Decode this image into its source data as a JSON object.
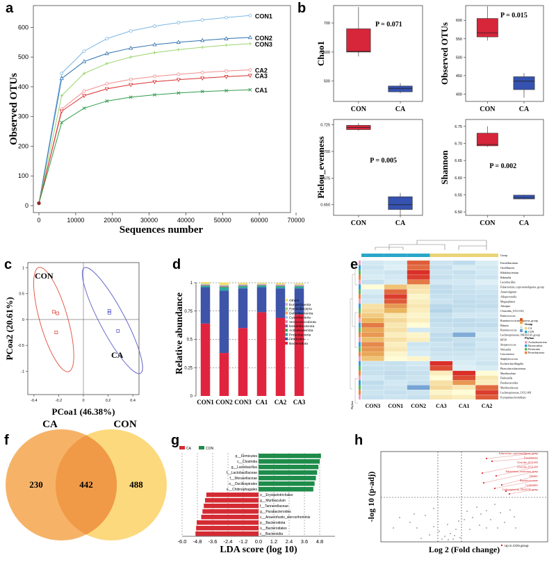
{
  "panels": {
    "a": "a",
    "b": "b",
    "c": "c",
    "d": "d",
    "e": "e",
    "f": "f",
    "g": "g",
    "h": "h"
  },
  "chart_data": [
    {
      "id": "a",
      "type": "line",
      "xlabel": "Sequences number",
      "ylabel": "Observed OTUs",
      "xlim": [
        0,
        70000
      ],
      "ylim": [
        0,
        650
      ],
      "xticks": [
        "0",
        "10000",
        "20000",
        "30000",
        "40000",
        "50000",
        "60000",
        "70000"
      ],
      "yticks": [
        "0",
        "100",
        "200",
        "300",
        "400",
        "500",
        "600"
      ],
      "x": [
        0,
        6200,
        12300,
        18500,
        25000,
        31500,
        38000,
        44500,
        51000,
        57500
      ],
      "series": [
        {
          "name": "CON1",
          "color": "#7bb6e4",
          "marker": "o",
          "values": [
            8,
            445,
            520,
            562,
            588,
            604,
            616,
            625,
            633,
            640
          ]
        },
        {
          "name": "CON2",
          "color": "#2a6fae",
          "marker": "^",
          "values": [
            8,
            428,
            485,
            512,
            530,
            542,
            550,
            556,
            562,
            566
          ]
        },
        {
          "name": "CON3",
          "color": "#9bd46c",
          "marker": "+",
          "values": [
            8,
            370,
            445,
            478,
            500,
            515,
            525,
            533,
            540,
            545
          ]
        },
        {
          "name": "CA2",
          "color": "#f28a8a",
          "marker": "o",
          "values": [
            8,
            325,
            385,
            410,
            425,
            435,
            442,
            448,
            453,
            457
          ]
        },
        {
          "name": "CA3",
          "color": "#d93030",
          "marker": "v",
          "values": [
            8,
            318,
            370,
            393,
            407,
            417,
            424,
            429,
            434,
            438
          ]
        },
        {
          "name": "CA1",
          "color": "#2f9a4a",
          "marker": "x",
          "values": [
            8,
            280,
            328,
            352,
            365,
            373,
            379,
            384,
            387,
            390
          ]
        }
      ]
    },
    {
      "id": "b",
      "type": "box",
      "subplots": [
        {
          "ylabel": "Chao1",
          "p": "P = 0.071",
          "yticks": [
            "500",
            "600",
            "700"
          ],
          "ylim": [
            430,
            760
          ],
          "groups": [
            {
              "name": "CON",
              "color": "#d7253a",
              "whisker": [
                585,
                755
              ],
              "box": [
                600,
                680
              ],
              "median": 602
            },
            {
              "name": "CA",
              "color": "#3552b0",
              "whisker": [
                458,
                493
              ],
              "box": [
                463,
                483
              ],
              "median": 475
            }
          ]
        },
        {
          "ylabel": "Observed OTUs",
          "p": "P = 0.015",
          "yticks": [
            "400",
            "450",
            "500",
            "550",
            "600"
          ],
          "ylim": [
            380,
            640
          ],
          "groups": [
            {
              "name": "CON",
              "color": "#d7253a",
              "whisker": [
                545,
                638
              ],
              "box": [
                555,
                605
              ],
              "median": 566
            },
            {
              "name": "CA",
              "color": "#3552b0",
              "whisker": [
                390,
                457
              ],
              "box": [
                412,
                447
              ],
              "median": 435
            }
          ]
        },
        {
          "ylabel": "Pielou_evenness",
          "p": "P = 0.005",
          "yticks": [
            "0.650",
            "0.675",
            "0.700",
            "0.725"
          ],
          "ylim": [
            0.64,
            0.73
          ],
          "groups": [
            {
              "name": "CON",
              "color": "#d7253a",
              "whisker": [
                0.7195,
                0.7265
              ],
              "box": [
                0.7205,
                0.7245
              ],
              "median": 0.7225
            },
            {
              "name": "CA",
              "color": "#3552b0",
              "whisker": [
                0.64,
                0.661
              ],
              "box": [
                0.6455,
                0.6575
              ],
              "median": 0.65
            }
          ]
        },
        {
          "ylabel": "Shannon",
          "p": "P = 0.002",
          "yticks": [
            "6.50",
            "6.55",
            "6.60",
            "6.65",
            "6.70",
            "6.75"
          ],
          "ylim": [
            6.49,
            6.77
          ],
          "groups": [
            {
              "name": "CON",
              "color": "#d7253a",
              "whisker": [
                6.69,
                6.75
              ],
              "box": [
                6.693,
                6.73
              ],
              "median": 6.697
            },
            {
              "name": "CA",
              "color": "#3552b0",
              "whisker": [
                6.537,
                6.55
              ],
              "box": [
                6.538,
                6.549
              ],
              "median": 6.541
            }
          ]
        }
      ]
    },
    {
      "id": "c",
      "type": "scatter",
      "xlabel": "PCoa1 (46.38%)",
      "ylabel": "PCoa2 (20.61%)",
      "xlim": [
        -0.45,
        0.45
      ],
      "ylim": [
        -1.45,
        1.1
      ],
      "xticks": [
        "-0.4",
        "-0.2",
        "0",
        "0.2",
        "0.4"
      ],
      "yticks": [
        "-1.5",
        "-1",
        "-0.5",
        "0",
        "0.5",
        "1"
      ],
      "groups": [
        {
          "name": "CON",
          "color": "#e04a3a",
          "points": [
            [
              -0.24,
              0.15
            ],
            [
              -0.21,
              0.12
            ],
            [
              -0.22,
              -0.25
            ]
          ]
        },
        {
          "name": "CA",
          "color": "#5a5ac8",
          "points": [
            [
              0.21,
              0.17
            ],
            [
              0.21,
              0.13
            ],
            [
              0.28,
              -0.22
            ]
          ]
        }
      ]
    },
    {
      "id": "d",
      "type": "bar",
      "stacked": true,
      "ylabel": "Relative abundance",
      "ylim": [
        0,
        1
      ],
      "yticks": [
        "0",
        "0.25",
        "0.5",
        "0.75",
        "1"
      ],
      "categories": [
        "CON1",
        "CON2",
        "CON3",
        "CA1",
        "CA2",
        "CA3"
      ],
      "series": [
        {
          "name": "Bacteroidota",
          "color": "#e0243f",
          "values": [
            0.64,
            0.38,
            0.6,
            0.74,
            0.69,
            0.72
          ]
        },
        {
          "name": "Firmicutes",
          "color": "#3e54a8",
          "values": [
            0.32,
            0.55,
            0.35,
            0.22,
            0.26,
            0.23
          ]
        },
        {
          "name": "Proteobacteria",
          "color": "#2aa9a3",
          "values": [
            0.01,
            0.025,
            0.015,
            0.012,
            0.015,
            0.015
          ]
        },
        {
          "name": "Actinobacteriota",
          "color": "#3fa35b",
          "values": [
            0.005,
            0.008,
            0.006,
            0.005,
            0.006,
            0.005
          ]
        },
        {
          "name": "Desulfobacterota",
          "color": "#8a5aa8",
          "values": [
            0.004,
            0.005,
            0.005,
            0.004,
            0.005,
            0.004
          ]
        },
        {
          "name": "Verrucomicrobiota",
          "color": "#e98fb4",
          "values": [
            0.003,
            0.004,
            0.003,
            0.003,
            0.003,
            0.003
          ]
        },
        {
          "name": "Cyanobacteria",
          "color": "#a9c6e8",
          "values": [
            0.003,
            0.003,
            0.003,
            0.002,
            0.002,
            0.002
          ]
        },
        {
          "name": "Deferribacterota",
          "color": "#f3a35e",
          "values": [
            0.002,
            0.002,
            0.002,
            0.002,
            0.002,
            0.002
          ]
        },
        {
          "name": "Patescibacteria",
          "color": "#9ad16c",
          "values": [
            0.003,
            0.004,
            0.003,
            0.002,
            0.002,
            0.002
          ]
        },
        {
          "name": "Euryarchaeota",
          "color": "#c9b2d9",
          "values": [
            0.002,
            0.002,
            0.002,
            0.002,
            0.002,
            0.002
          ]
        },
        {
          "name": "Others",
          "color": "#f2e36a",
          "values": [
            0.014,
            0.019,
            0.011,
            0.008,
            0.01,
            0.01
          ]
        }
      ],
      "legend": [
        "Others",
        "Euryarchaeota",
        "Patescibacteria",
        "Deferribacterota",
        "Cyanobacteria",
        "Verrucomicrobiota",
        "Desulfobacterota",
        "Actinobacteriota",
        "Proteobacteria",
        "Firmicutes",
        "Bacteroidota"
      ]
    },
    {
      "id": "e",
      "type": "heatmap",
      "columns": [
        "CON3",
        "CON1",
        "CON2",
        "CA3",
        "CA1",
        "CA2"
      ],
      "header": "Group",
      "rows": [
        "Faecalibaculum",
        "Oscillibacter",
        "Bifidobacterium",
        "Rikenella",
        "Lactobacillus",
        "Eubacterium_coprostanoligenes_group",
        "Anaerotignum",
        "Alloprevotella",
        "Megasphaera",
        "Alistipes",
        "Clostridia_UCG-014",
        "Enterococcus",
        "Ruminococcaceae_gnavus_group",
        "Blautia",
        "Ruminococcus",
        "Lachnospiraceae_NK4A136_group",
        "RF39",
        "Streptococcus",
        "Weissella",
        "Leuconostoc",
        "Staphylococcus",
        "Escherichia-Shigella",
        "Phascolarctobacterium",
        "Muribaculum",
        "Dubosiella",
        "Parabacteroides",
        "Muribaculaceae",
        "Lachnospiraceae_UCG-001",
        "Erysipelatoclostridium"
      ],
      "values": [
        [
          -0.3,
          -0.2,
          1.6,
          -0.4,
          -0.6,
          -0.2
        ],
        [
          -0.4,
          -0.1,
          1.5,
          -0.5,
          -0.2,
          -0.3
        ],
        [
          -0.3,
          -0.4,
          1.9,
          -0.4,
          -0.5,
          -0.3
        ],
        [
          -0.2,
          -0.3,
          1.8,
          -0.5,
          -0.4,
          -0.4
        ],
        [
          -0.5,
          -0.2,
          1.4,
          -0.3,
          -0.3,
          -0.1
        ],
        [
          0.0,
          0.8,
          0.4,
          -0.6,
          -0.4,
          -0.3
        ],
        [
          -0.2,
          1.5,
          0.3,
          -0.6,
          -0.5,
          -0.4
        ],
        [
          -0.4,
          1.8,
          0.1,
          -0.5,
          -0.5,
          -0.5
        ],
        [
          -0.3,
          1.6,
          0.2,
          -0.4,
          -0.6,
          -0.5
        ],
        [
          0.4,
          1.2,
          0.3,
          -0.7,
          -0.6,
          -0.6
        ],
        [
          0.5,
          1.0,
          0.2,
          -0.8,
          -0.5,
          -0.4
        ],
        [
          0.7,
          0.3,
          0.1,
          -0.5,
          -0.3,
          -0.3
        ],
        [
          1.0,
          0.5,
          0.2,
          -0.6,
          -0.6,
          -0.5
        ],
        [
          1.4,
          0.3,
          0.0,
          -0.5,
          -0.6,
          -0.6
        ],
        [
          1.1,
          0.4,
          -0.3,
          -0.4,
          -0.4,
          -0.4
        ],
        [
          1.2,
          0.2,
          0.1,
          -0.6,
          -1.4,
          -0.2
        ],
        [
          0.9,
          0.4,
          0.2,
          -0.6,
          -0.5,
          -0.4
        ],
        [
          1.3,
          0.2,
          -0.4,
          -0.4,
          -0.6,
          -0.3
        ],
        [
          1.2,
          0.3,
          -0.3,
          -0.5,
          -0.5,
          -0.4
        ],
        [
          1.1,
          0.1,
          -0.2,
          -0.4,
          -0.4,
          -0.3
        ],
        [
          0.8,
          0.0,
          0.1,
          -0.3,
          -0.3,
          -0.3
        ],
        [
          -0.4,
          -0.5,
          -0.3,
          1.9,
          -0.2,
          -0.4
        ],
        [
          -0.5,
          -0.5,
          -0.4,
          1.7,
          -0.1,
          -0.2
        ],
        [
          -0.5,
          -0.6,
          -0.5,
          0.2,
          1.9,
          0.0
        ],
        [
          -0.3,
          -0.5,
          -0.4,
          0.0,
          1.7,
          0.3
        ],
        [
          -0.6,
          -0.3,
          -0.5,
          0.4,
          1.2,
          0.2
        ],
        [
          -0.5,
          -0.4,
          -1.5,
          0.5,
          0.3,
          1.5
        ],
        [
          -0.4,
          -0.5,
          -0.4,
          0.1,
          0.0,
          1.8
        ],
        [
          -0.5,
          -0.4,
          -0.5,
          0.3,
          0.2,
          1.6
        ]
      ],
      "legend_group_title": "Group",
      "legend_groups": [
        "CA",
        "CON"
      ],
      "legend_phylum_title": "Phylum",
      "legend_phyla": [
        "Actinobacteriota",
        "Bacteroidota",
        "Firmicutes",
        "Proteobacteria"
      ]
    },
    {
      "id": "f",
      "type": "venn",
      "sets": [
        {
          "name": "CA",
          "unique": 230,
          "color": "#f4a64e"
        },
        {
          "name": "CON",
          "unique": 488,
          "color": "#fbd266"
        }
      ],
      "shared": 442
    },
    {
      "id": "g",
      "type": "bar",
      "orientation": "horizontal",
      "xlabel": "LDA score (log 10)",
      "xlim": [
        -6.0,
        6.0
      ],
      "xticks": [
        "-6.0",
        "-4.8",
        "-3.6",
        "-2.4",
        "-1.2",
        "0.0",
        "1.2",
        "2.4",
        "3.6",
        "4.8"
      ],
      "legend": [
        {
          "name": "CA",
          "color": "#d42b33"
        },
        {
          "name": "CON",
          "color": "#1e8c4a"
        }
      ],
      "categories": [
        "p__Firmicutes",
        "c__Clostridia",
        "g__Lactobacillus",
        "f__Lactobacillaceae",
        "f__Moraxellaceae",
        "o__Oscillospirales",
        "o__Chitinophagales",
        "o__Erysipelotrichales",
        "g__Muribaculum",
        "f__Tannerellaceae",
        "g__Parabacteroides",
        "c__Anaerofustis_stercorihominis",
        "p__Bacteroidota",
        "o__Bacteroidales",
        "c__Bacteroidia"
      ],
      "values": [
        4.9,
        4.8,
        4.7,
        4.6,
        4.5,
        4.4,
        4.3,
        -4.1,
        -4.2,
        -4.3,
        -4.4,
        -4.5,
        -4.85,
        -4.9,
        -4.95
      ],
      "groups": [
        "CON",
        "CON",
        "CON",
        "CON",
        "CON",
        "CON",
        "CON",
        "CA",
        "CA",
        "CA",
        "CA",
        "CA",
        "CA",
        "CA",
        "CA"
      ]
    },
    {
      "id": "h",
      "type": "scatter",
      "xlabel": "Log 2 (Fold change)",
      "ylabel": "-log 10 (p-adj)",
      "legend": "Up in CON group",
      "labels": [
        "Eubacterium_coprostanoligenes_group",
        "Pseudomonas",
        "Clostridia_UCG-014",
        "Clostridia_UCG-014",
        "Eubacterium_ventriosum_group",
        "Alistipes",
        "Ruminococcaceae",
        "Lachnospira",
        "Lachnospiraceae_NK4A136_group"
      ]
    }
  ]
}
